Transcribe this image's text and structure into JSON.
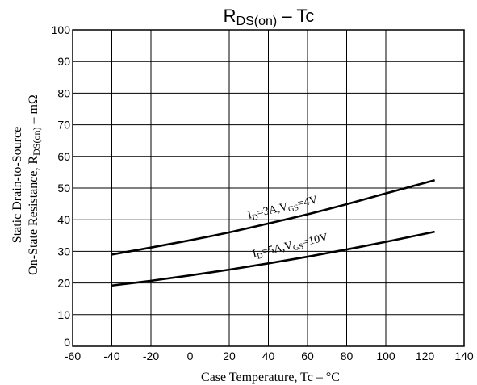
{
  "chart_data": {
    "type": "line",
    "title": "RDS(on) – Tc",
    "xlabel": "Case Temperature, Tc – °C",
    "ylabel_line1": "Static Drain-to-Source",
    "ylabel_line2": "On-State Resistance, RDS(on) – mΩ",
    "xlim": [
      -60,
      140
    ],
    "ylim": [
      0,
      100
    ],
    "x_ticks": [
      -60,
      -40,
      -20,
      0,
      20,
      40,
      60,
      80,
      100,
      120,
      140
    ],
    "y_ticks": [
      0,
      10,
      20,
      30,
      40,
      50,
      60,
      70,
      80,
      90,
      100
    ],
    "grid": true,
    "series": [
      {
        "name": "ID=3A,VGS=4V",
        "x": [
          -40,
          -20,
          0,
          20,
          40,
          60,
          80,
          100,
          125
        ],
        "y": [
          29.0,
          31.2,
          33.5,
          36.0,
          38.8,
          41.7,
          44.9,
          48.3,
          52.5
        ]
      },
      {
        "name": "ID=5A,VGS=10V",
        "x": [
          -40,
          -20,
          0,
          20,
          40,
          60,
          80,
          100,
          125
        ],
        "y": [
          19.2,
          20.7,
          22.4,
          24.2,
          26.2,
          28.3,
          30.6,
          33.0,
          36.2
        ]
      }
    ]
  }
}
